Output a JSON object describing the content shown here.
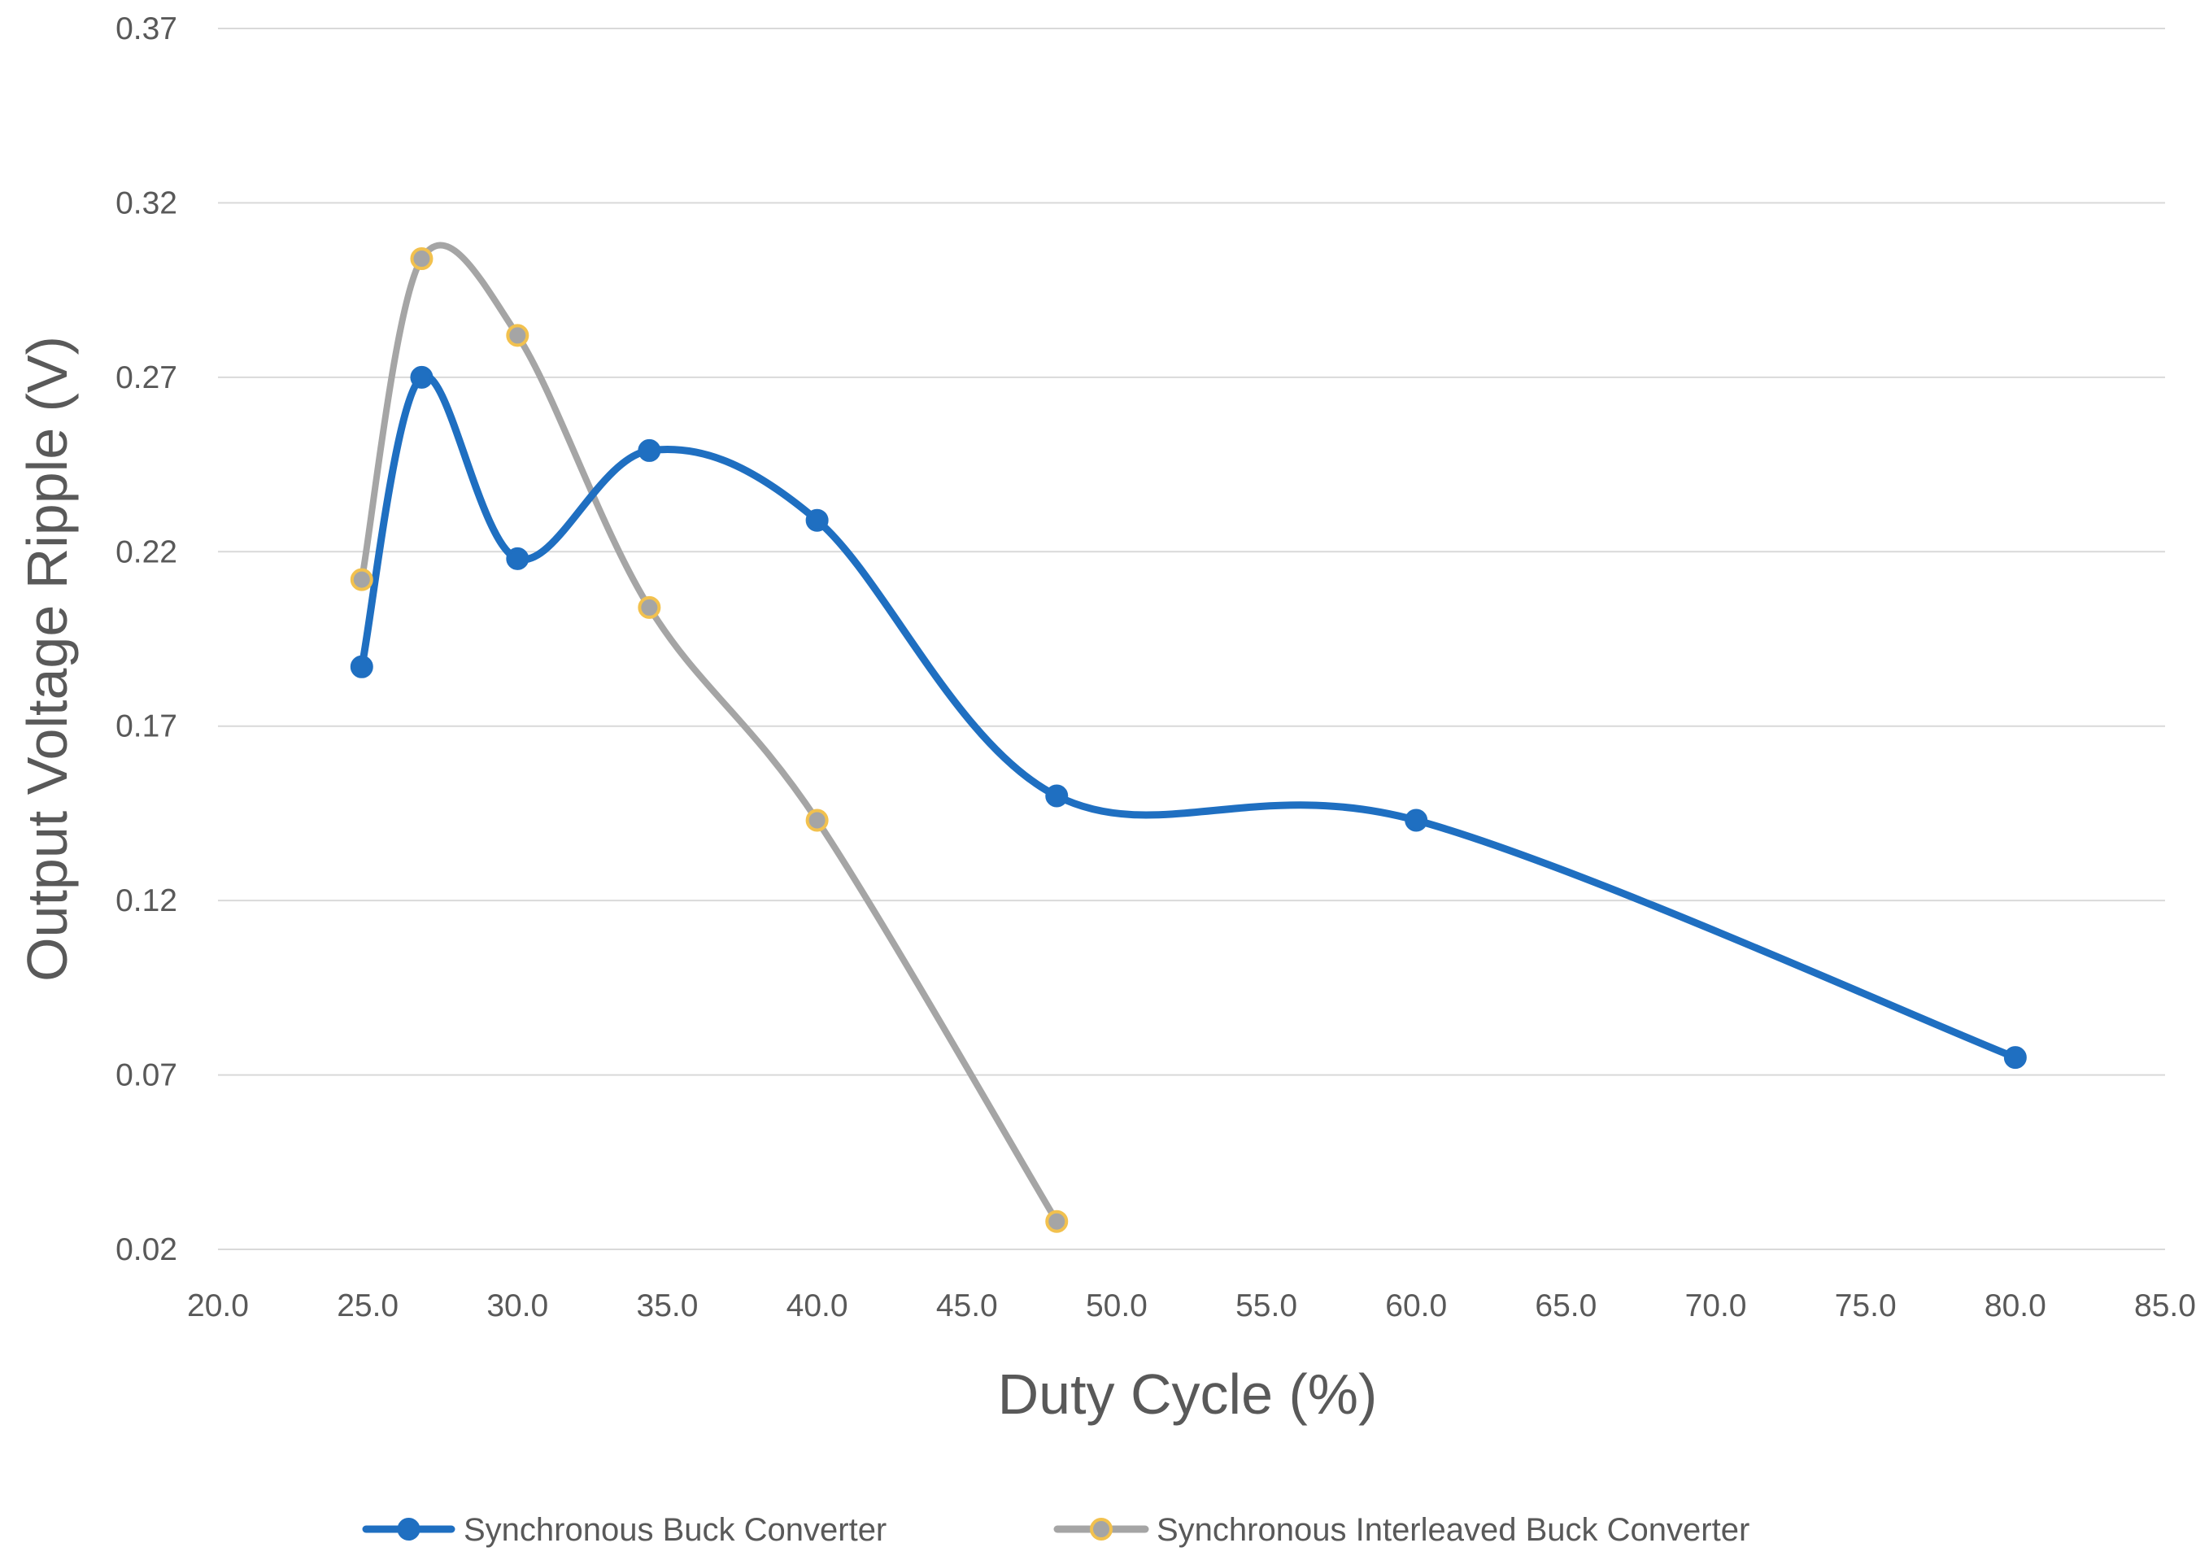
{
  "chart_data": {
    "type": "line",
    "smooth": true,
    "title": "",
    "xlabel": "Duty Cycle (%)",
    "ylabel": "Output Voltage Ripple (V)",
    "xlim": [
      20.0,
      85.0
    ],
    "ylim": [
      0.02,
      0.37
    ],
    "x_ticks": [
      "20.0",
      "25.0",
      "30.0",
      "35.0",
      "40.0",
      "45.0",
      "50.0",
      "55.0",
      "60.0",
      "65.0",
      "70.0",
      "75.0",
      "80.0",
      "85.0"
    ],
    "y_ticks": [
      "0.02",
      "0.07",
      "0.12",
      "0.17",
      "0.22",
      "0.27",
      "0.32",
      "0.37"
    ],
    "grid": "horizontal",
    "legend_position": "bottom",
    "series": [
      {
        "name": "Synchronous Buck Converter",
        "color": "#1f6fc1",
        "marker_fill": "#1f6fc1",
        "marker_edge": "#1f6fc1",
        "x": [
          24.8,
          26.8,
          30.0,
          34.4,
          40.0,
          48.0,
          60.0,
          80.0
        ],
        "y": [
          0.187,
          0.27,
          0.218,
          0.249,
          0.229,
          0.15,
          0.143,
          0.075
        ]
      },
      {
        "name": "Synchronous Interleaved Buck Converter",
        "color": "#a5a5a5",
        "marker_fill": "#a5a5a5",
        "marker_edge": "#f2c14e",
        "x": [
          24.8,
          26.8,
          30.0,
          34.4,
          40.0,
          48.0
        ],
        "y": [
          0.212,
          0.304,
          0.282,
          0.204,
          0.143,
          0.028
        ]
      }
    ]
  }
}
